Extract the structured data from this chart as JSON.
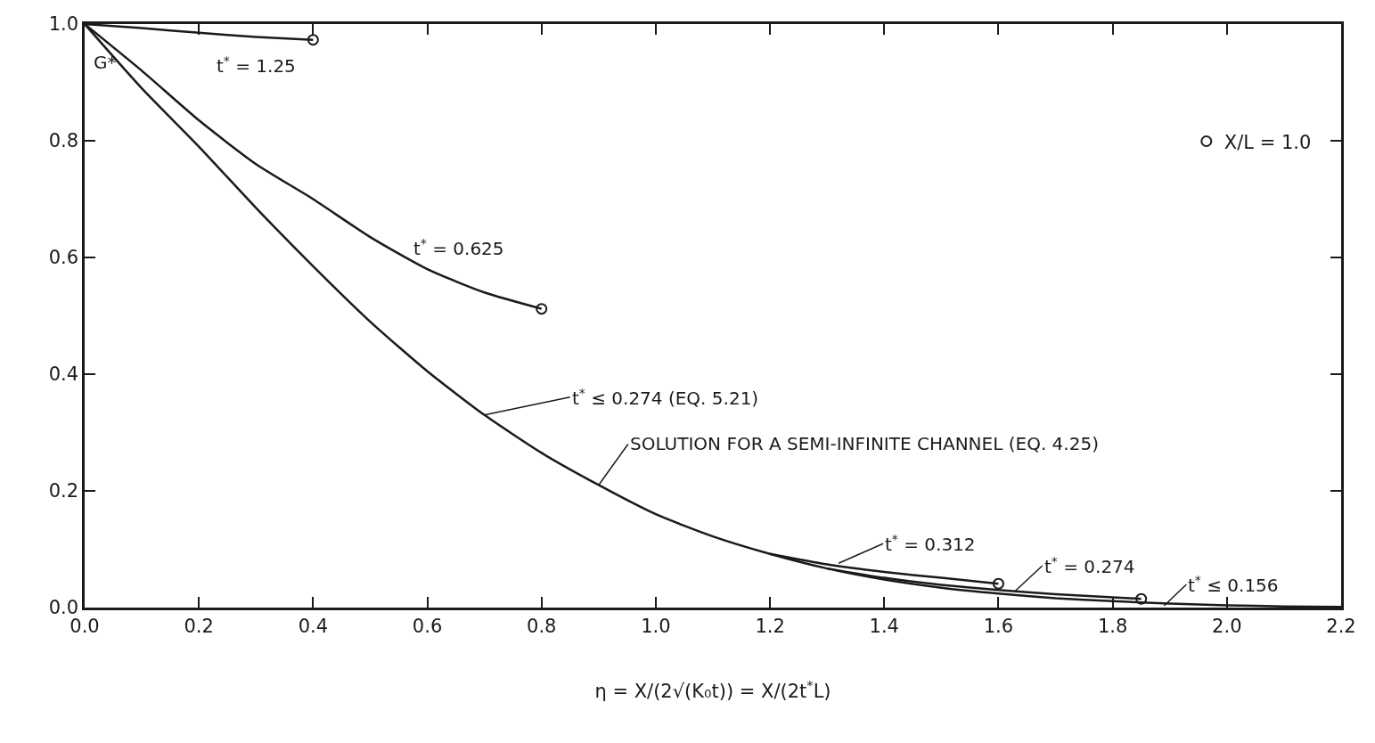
{
  "chart_data": {
    "type": "line",
    "xlabel": "η = X/(2√(K₀t)) = X/(2t$^{*}$L)",
    "ylabel": "G*",
    "xlim": [
      0,
      2.2
    ],
    "xticks": [
      {
        "value": 0,
        "label": "0.0"
      },
      0.2,
      0.4,
      0.6,
      0.8,
      {
        "value": 1,
        "label": "1.0"
      },
      1.2,
      1.4,
      1.6,
      1.8,
      {
        "value": 2,
        "label": "2.0"
      },
      2.2
    ],
    "ylim": [
      0,
      1
    ],
    "yticks": [
      {
        "value": 0,
        "label": "0.0"
      },
      0.2,
      0.4,
      0.6,
      0.8,
      {
        "value": 1,
        "label": "1.0"
      }
    ],
    "grid": false,
    "legend": "top right",
    "marker": "none",
    "line_style": "solid",
    "series": [
      {
        "color": "#1a1a1a",
        "x": [
          0,
          0.1,
          0.2,
          0.3,
          0.4
        ],
        "values": [
          1,
          0.993,
          0.985,
          0.978,
          0.973
        ]
      },
      {
        "color": "#1a1a1a",
        "x": [
          0,
          0.1,
          0.2,
          0.3,
          0.4,
          0.5,
          0.6,
          0.7,
          0.8
        ],
        "values": [
          1,
          0.92,
          0.835,
          0.76,
          0.7,
          0.635,
          0.58,
          0.54,
          0.512
        ]
      },
      {
        "color": "#1a1a1a",
        "x": [
          0,
          0.1,
          0.2,
          0.3,
          0.4,
          0.5,
          0.6,
          0.7,
          0.8,
          0.9,
          1.0,
          1.1,
          1.2,
          1.3,
          1.4,
          1.5,
          1.6,
          1.7,
          1.8,
          1.9,
          2.0,
          2.1,
          2.2
        ],
        "values": [
          1,
          0.89,
          0.79,
          0.685,
          0.585,
          0.49,
          0.405,
          0.33,
          0.265,
          0.21,
          0.16,
          0.122,
          0.092,
          0.067,
          0.048,
          0.034,
          0.024,
          0.016,
          0.011,
          0.007,
          0.004,
          0.002,
          0.001
        ]
      },
      {
        "color": "#1a1a1a",
        "x": [
          1.2,
          1.3,
          1.4,
          1.5,
          1.6
        ],
        "values": [
          0.092,
          0.074,
          0.061,
          0.051,
          0.041
        ]
      },
      {
        "color": "#1a1a1a",
        "x": [
          1.3,
          1.4,
          1.5,
          1.6,
          1.7,
          1.85
        ],
        "values": [
          0.067,
          0.051,
          0.039,
          0.03,
          0.023,
          0.015
        ]
      },
      {
        "type": "scatter",
        "name": "X/L = 1.0",
        "color": "#1a1a1a",
        "marker": "circle",
        "x": [
          0.4,
          0.8,
          1.6,
          1.85
        ],
        "values": [
          0.973,
          0.512,
          0.041,
          0.015
        ]
      }
    ],
    "annotations": [
      {
        "text": "t$^{*}$ = 1.25",
        "x": 0.3,
        "y": 0.978
      },
      {
        "text": "t$^{*}$ = 0.625",
        "x": 0.6,
        "y": 0.58
      },
      {
        "text": "t$^{*}$ ≤ 0.274 (EQ. 5.21)",
        "x": 0.7,
        "y": 0.33
      },
      {
        "text": "SOLUTION FOR A SEMI-INFINITE CHANNEL (EQ. 4.25)",
        "x": 0.9,
        "y": 0.21
      },
      {
        "text": "t$^{*}$ = 0.312",
        "x": 1.32,
        "y": 0.076
      },
      {
        "text": "t$^{*}$ = 0.274",
        "x": 1.63,
        "y": 0.029
      },
      {
        "text": "t$^{*}$ ≤ 0.156",
        "x": 1.89,
        "y": 0.003
      }
    ]
  }
}
